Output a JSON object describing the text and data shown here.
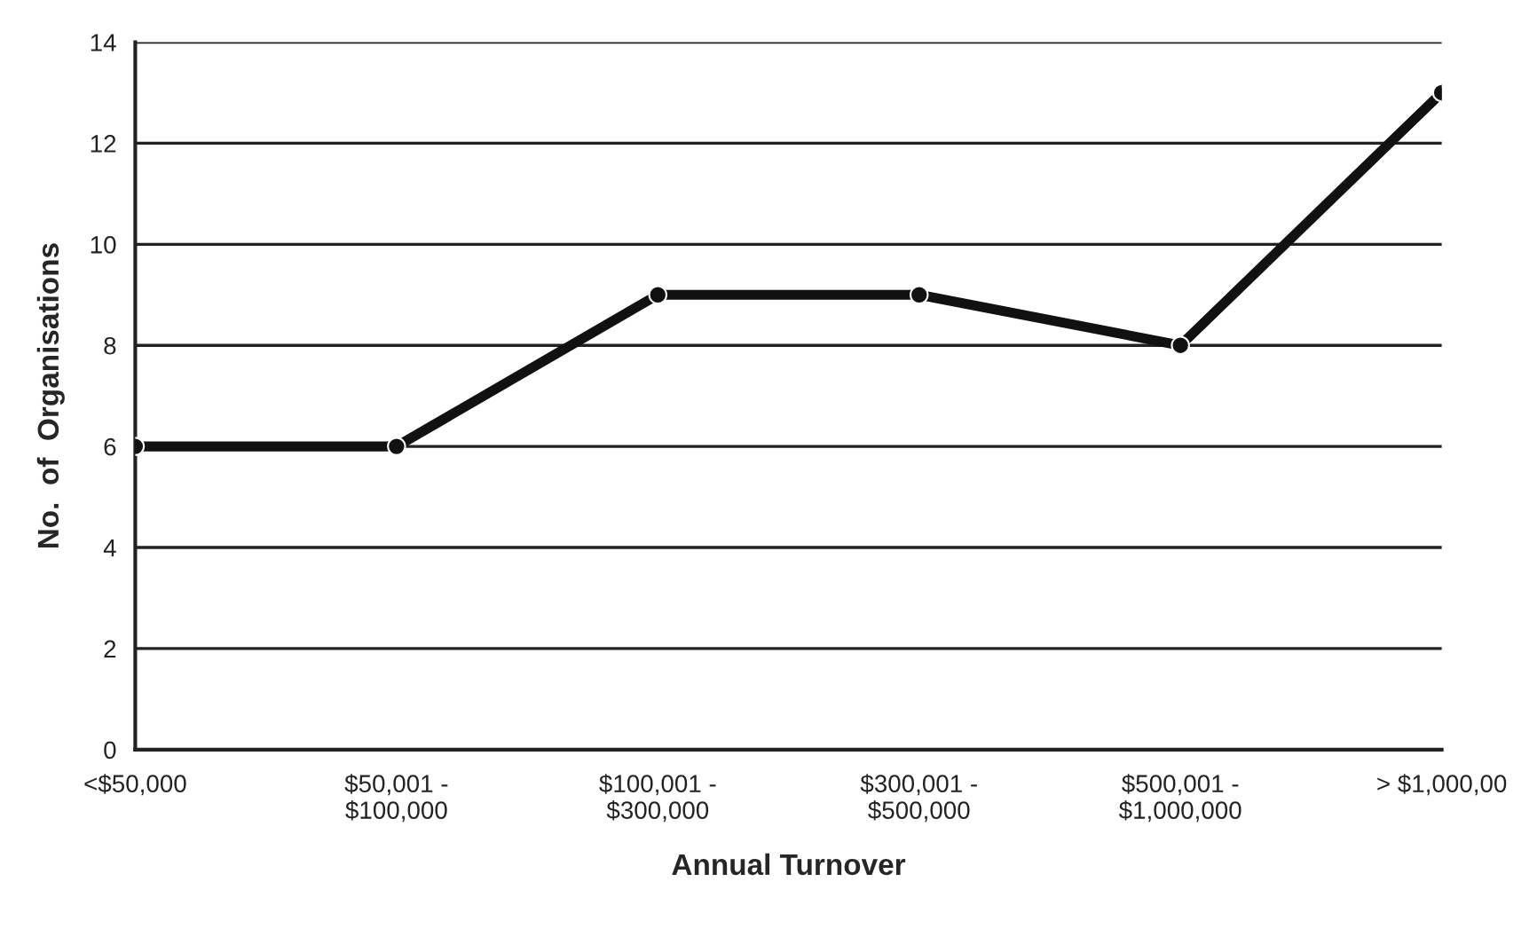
{
  "chart_data": {
    "type": "line",
    "xlabel": "Annual Turnover",
    "ylabel": "No.  of  Organisations",
    "categories": [
      "<$50,000",
      "$50,001 -\n$100,000",
      "$100,001 -\n$300,000",
      "$300,001 -\n$500,000",
      "$500,001 -\n$1,000,000",
      "> $1,000,00"
    ],
    "series": [
      {
        "color": "#111111",
        "values": [
          6,
          6,
          9,
          9,
          8,
          13
        ]
      }
    ],
    "ylim": [
      0,
      14
    ],
    "yticks": [
      0,
      2,
      4,
      6,
      8,
      10,
      12,
      14
    ],
    "grid": "y",
    "marker": "circle",
    "line_style": "solid"
  }
}
